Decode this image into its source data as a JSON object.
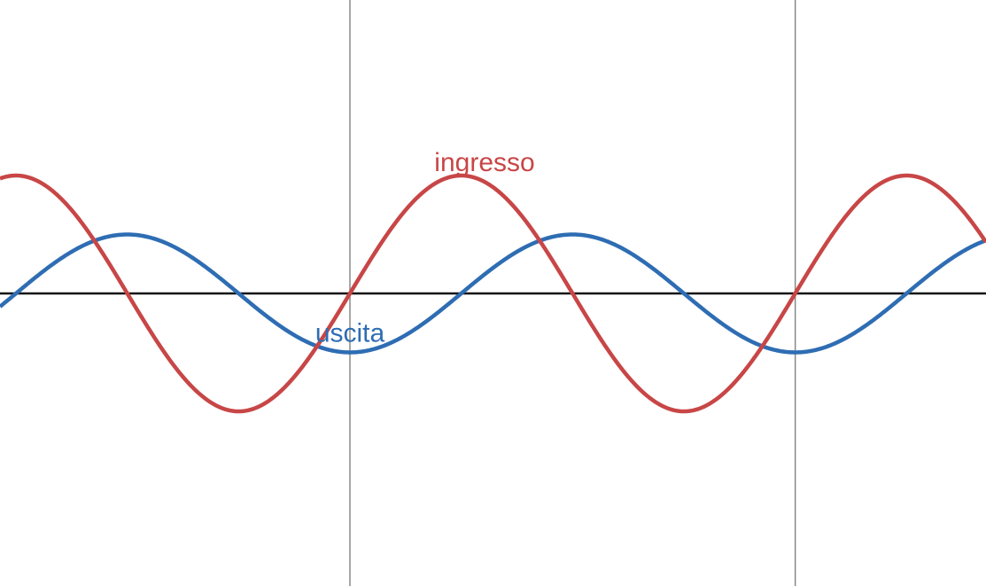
{
  "chart_data": {
    "type": "line",
    "x_range": [
      -3.14159,
      5.59
    ],
    "y_range": [
      -1.3,
      1.0
    ],
    "vertical_lines_x": [
      0,
      6.28318
    ],
    "series": [
      {
        "name": "ingresso",
        "function": "sin",
        "amplitude": 1.0,
        "frequency": 1,
        "phase_deg": 0,
        "color": "#c84646",
        "label_at_x": 1.9
      },
      {
        "name": "uscita",
        "function": "sin",
        "amplitude": 0.5,
        "frequency": 1,
        "phase_deg": -90,
        "color": "#2e6db3",
        "label_at_x": 0
      }
    ],
    "axis_color": "#111111",
    "vline_color": "#888888"
  }
}
